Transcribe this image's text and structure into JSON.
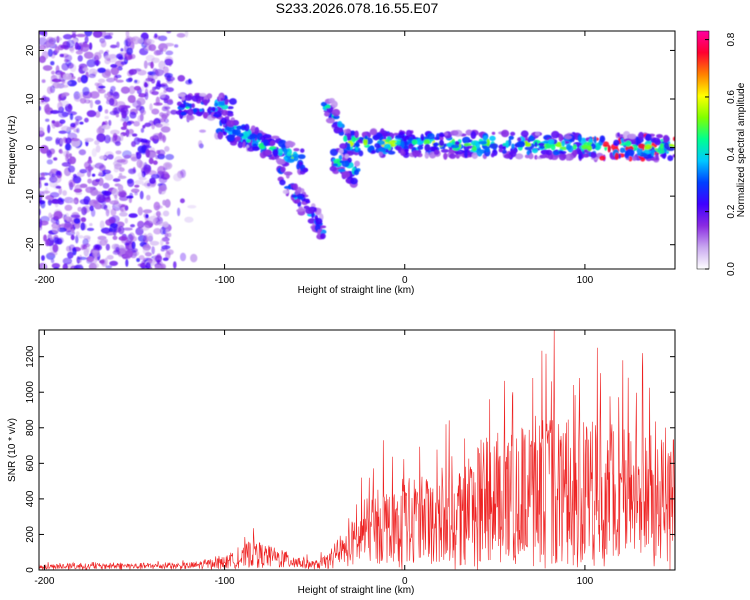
{
  "figure_title": "S233.2026.078.16.55.E07",
  "chart_data": [
    {
      "type": "heatmap",
      "title": "S233.2026.078.16.55.E07",
      "xlabel": "Height of straight line (km)",
      "ylabel": "Frequency (Hz)",
      "xlim": [
        -203,
        150
      ],
      "ylim": [
        -25,
        24
      ],
      "xticks": [
        -200,
        -100,
        0,
        100
      ],
      "xtick_labels": [
        "-200",
        "-100",
        "0",
        "100"
      ],
      "yticks": [
        20,
        10,
        0,
        -10,
        -20
      ],
      "ytick_labels": [
        "20",
        "10",
        "0",
        "-10",
        "-20"
      ],
      "colorbar": {
        "label": "Normalized spectral amplitude",
        "range": [
          0.0,
          0.83
        ],
        "ticks": [
          0.8,
          0.6,
          0.4,
          0.2,
          0.0
        ],
        "tick_labels": [
          "0.8",
          "0.6",
          "0.4",
          "0.2",
          "0.0"
        ],
        "colors": [
          "#ffffff",
          "#c9a8f0",
          "#8a2be2",
          "#3f00ff",
          "#0040ff",
          "#00c8ff",
          "#00ff90",
          "#80ff00",
          "#ffff00",
          "#ff8000",
          "#ff0030",
          "#ff00a0"
        ]
      },
      "features": [
        {
          "name": "noise",
          "x": [
            -203,
            -130
          ],
          "y": [
            -25,
            24
          ],
          "amplitude": [
            0.05,
            0.25
          ]
        },
        {
          "name": "band-1",
          "x": [
            -125,
            -95
          ],
          "y_start": 8.5,
          "y_end": 8.5,
          "amplitude": 0.35
        },
        {
          "name": "band-2",
          "x": [
            -105,
            -55
          ],
          "y_start": 5,
          "y_end": -3,
          "amplitude": 0.4
        },
        {
          "name": "branch-down",
          "x": [
            -70,
            -45
          ],
          "y_start": -5,
          "y_end": -17,
          "amplitude": 0.3
        },
        {
          "name": "branch-up",
          "x": [
            -45,
            -35
          ],
          "y_start": 10,
          "y_end": 4,
          "amplitude": 0.35
        },
        {
          "name": "main-band",
          "x": [
            -35,
            150
          ],
          "y_start": 1,
          "y_end": 0,
          "amplitude": 0.45
        },
        {
          "name": "dip",
          "x": [
            -40,
            -25
          ],
          "y_start": -2,
          "y_end": -6,
          "amplitude": 0.4
        }
      ]
    },
    {
      "type": "line",
      "xlabel": "Height of straight line (km)",
      "ylabel": "SNR (10 * v/v)",
      "xlim": [
        -203,
        150
      ],
      "ylim": [
        0,
        1350
      ],
      "xticks": [
        -200,
        -100,
        0,
        100
      ],
      "xtick_labels": [
        "-200",
        "-100",
        "0",
        "100"
      ],
      "yticks": [
        0,
        200,
        400,
        600,
        800,
        1000,
        1200
      ],
      "ytick_labels": [
        "0",
        "200",
        "400",
        "600",
        "800",
        "1000",
        "1200"
      ],
      "color": "#ee2222",
      "envelope": {
        "x": [
          -203,
          -120,
          -110,
          -100,
          -90,
          -85,
          -80,
          -70,
          -60,
          -50,
          -40,
          -30,
          -25,
          -20,
          -10,
          0,
          10,
          20,
          30,
          40,
          50,
          60,
          70,
          80,
          90,
          100,
          110,
          120,
          130,
          140,
          150
        ],
        "mean": [
          20,
          25,
          35,
          45,
          70,
          110,
          90,
          70,
          50,
          30,
          60,
          150,
          180,
          250,
          280,
          300,
          310,
          320,
          360,
          420,
          450,
          480,
          480,
          500,
          500,
          490,
          500,
          480,
          470,
          450,
          440
        ],
        "max": [
          45,
          55,
          70,
          90,
          170,
          240,
          170,
          130,
          100,
          80,
          140,
          320,
          520,
          560,
          730,
          640,
          720,
          820,
          950,
          1000,
          1080,
          1080,
          1100,
          1350,
          1150,
          1250,
          1200,
          1150,
          1220,
          900,
          860
        ]
      },
      "peaks": [
        {
          "x": -84,
          "y": 235
        },
        {
          "x": -24,
          "y": 520
        },
        {
          "x": -12,
          "y": 730
        },
        {
          "x": 23,
          "y": 820
        },
        {
          "x": 47,
          "y": 960
        },
        {
          "x": 60,
          "y": 1000
        },
        {
          "x": 71,
          "y": 1080
        },
        {
          "x": 83,
          "y": 1350
        },
        {
          "x": 97,
          "y": 1080
        },
        {
          "x": 107,
          "y": 1250
        },
        {
          "x": 121,
          "y": 1180
        },
        {
          "x": 132,
          "y": 1220
        }
      ]
    }
  ]
}
